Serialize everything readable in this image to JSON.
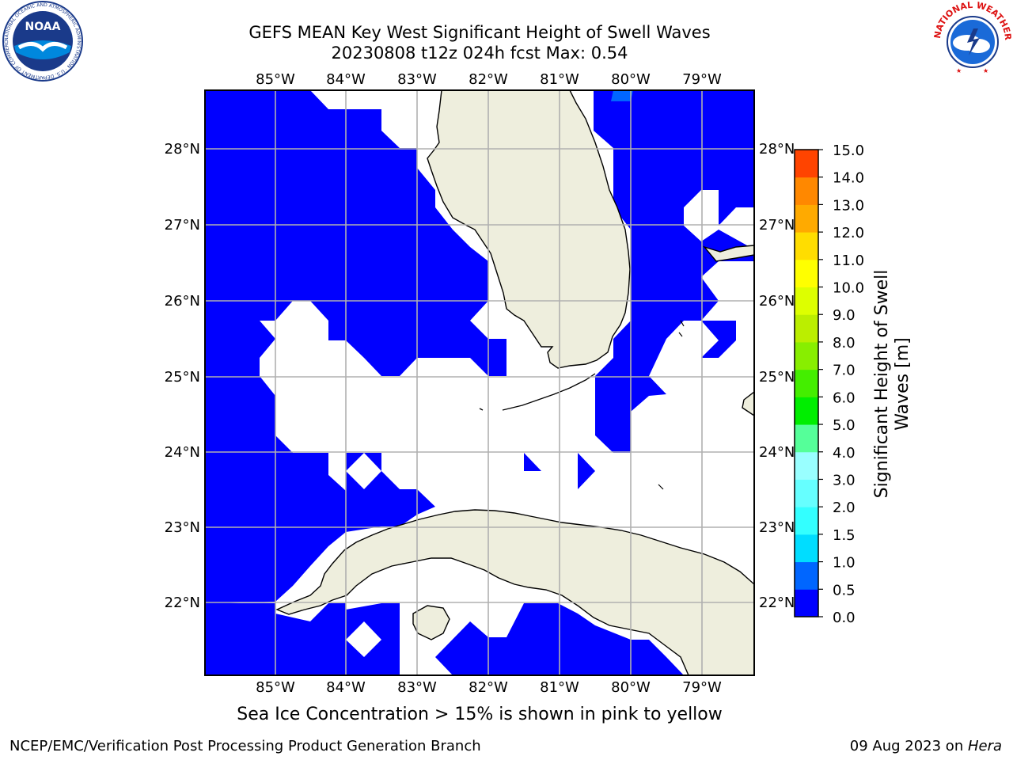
{
  "header": {
    "title_line1": "GEFS MEAN Key West Significant Height of Swell Waves",
    "title_line2": "20230808 t12z 024h fcst   Max: 0.54"
  },
  "logos": {
    "left": "noaa-logo",
    "right": "national-weather-service-logo",
    "left_text": "NOAA",
    "left_ring_text": "NATIONAL OCEANIC AND ATMOSPHERIC ADMINISTRATION · U.S. DEPARTMENT OF COMMERCE",
    "right_ring_text": "NATIONAL WEATHER SERVICE"
  },
  "map": {
    "lon_labels": [
      "85°W",
      "84°W",
      "83°W",
      "82°W",
      "81°W",
      "80°W",
      "79°W"
    ],
    "lat_labels": [
      "28°N",
      "27°N",
      "26°N",
      "25°N",
      "24°N",
      "23°N",
      "22°N"
    ],
    "colors": {
      "ocean_swell": "#0000ff",
      "land": "#eeeedd",
      "grid": "#b0b0b0",
      "undefined": "#ffffff",
      "max_cell": "#0066ff"
    }
  },
  "colorbar": {
    "title_line1": "Significant Height of Swell",
    "title_line2": "Waves [m]",
    "ticks": [
      "0.0",
      "0.5",
      "1.0",
      "1.5",
      "2.0",
      "3.0",
      "4.0",
      "5.0",
      "6.0",
      "7.0",
      "8.0",
      "9.0",
      "10.0",
      "11.0",
      "12.0",
      "13.0",
      "14.0",
      "15.0"
    ],
    "colors": [
      "#0000ff",
      "#0066ff",
      "#00ddff",
      "#33ffff",
      "#66ffff",
      "#99ffff",
      "#55ff99",
      "#00ee00",
      "#44ee00",
      "#88ee00",
      "#bbee00",
      "#ddff00",
      "#ffff00",
      "#ffdd00",
      "#ffaa00",
      "#ff8800",
      "#ff4400",
      "#ff2200",
      "#ff0000"
    ]
  },
  "footer": {
    "caption": "Sea Ice Concentration > 15% is shown in pink to yellow",
    "left": "NCEP/EMC/Verification Post Processing Product Generation Branch",
    "right_date": "09 Aug 2023 on ",
    "right_machine": "Hera"
  }
}
